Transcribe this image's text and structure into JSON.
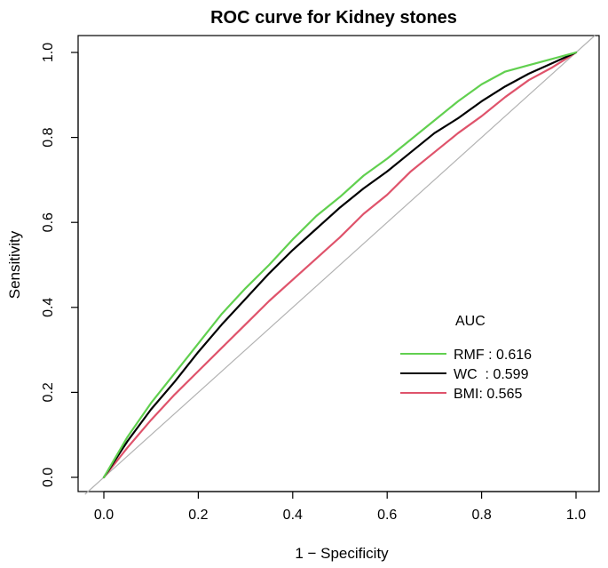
{
  "chart_data": {
    "type": "line",
    "title": "ROC curve for Kidney stones",
    "xlabel": "1 − Specificity",
    "ylabel": "Sensitivity",
    "xlim": [
      0,
      1
    ],
    "ylim": [
      0,
      1
    ],
    "xticks": [
      "0.0",
      "0.2",
      "0.4",
      "0.6",
      "0.8",
      "1.0"
    ],
    "yticks": [
      "0.0",
      "0.2",
      "0.4",
      "0.6",
      "0.8",
      "1.0"
    ],
    "reference_line": {
      "x": [
        0,
        1
      ],
      "y": [
        0,
        1
      ],
      "color": "#b3b3b3"
    },
    "legend": {
      "title": "AUC",
      "placement": "bottom-right",
      "entries": [
        {
          "label": "RMF : 0.616",
          "color": "#61d04f"
        },
        {
          "label": "WC  : 0.599",
          "color": "#000000"
        },
        {
          "label": "BMI: 0.565",
          "color": "#df536b"
        }
      ]
    },
    "series": [
      {
        "name": "RMF",
        "auc": 0.616,
        "color": "#61d04f",
        "x": [
          0,
          0.05,
          0.1,
          0.15,
          0.2,
          0.25,
          0.3,
          0.35,
          0.4,
          0.45,
          0.5,
          0.55,
          0.6,
          0.65,
          0.7,
          0.75,
          0.8,
          0.85,
          0.9,
          0.95,
          1.0
        ],
        "y": [
          0,
          0.095,
          0.175,
          0.245,
          0.315,
          0.385,
          0.445,
          0.5,
          0.56,
          0.615,
          0.66,
          0.71,
          0.75,
          0.795,
          0.84,
          0.885,
          0.925,
          0.955,
          0.97,
          0.985,
          1.0
        ]
      },
      {
        "name": "WC",
        "auc": 0.599,
        "color": "#000000",
        "x": [
          0,
          0.05,
          0.1,
          0.15,
          0.2,
          0.25,
          0.3,
          0.35,
          0.4,
          0.45,
          0.5,
          0.55,
          0.6,
          0.65,
          0.7,
          0.75,
          0.8,
          0.85,
          0.9,
          0.95,
          1.0
        ],
        "y": [
          0,
          0.085,
          0.16,
          0.225,
          0.295,
          0.36,
          0.42,
          0.48,
          0.535,
          0.585,
          0.635,
          0.68,
          0.72,
          0.765,
          0.81,
          0.845,
          0.885,
          0.92,
          0.95,
          0.975,
          1.0
        ]
      },
      {
        "name": "BMI",
        "auc": 0.565,
        "color": "#df536b",
        "x": [
          0,
          0.05,
          0.1,
          0.15,
          0.2,
          0.25,
          0.3,
          0.35,
          0.4,
          0.45,
          0.5,
          0.55,
          0.6,
          0.65,
          0.7,
          0.75,
          0.8,
          0.85,
          0.9,
          0.95,
          1.0
        ],
        "y": [
          0,
          0.07,
          0.135,
          0.195,
          0.25,
          0.305,
          0.36,
          0.415,
          0.465,
          0.515,
          0.565,
          0.62,
          0.665,
          0.72,
          0.765,
          0.81,
          0.85,
          0.895,
          0.935,
          0.965,
          1.0
        ]
      }
    ]
  }
}
